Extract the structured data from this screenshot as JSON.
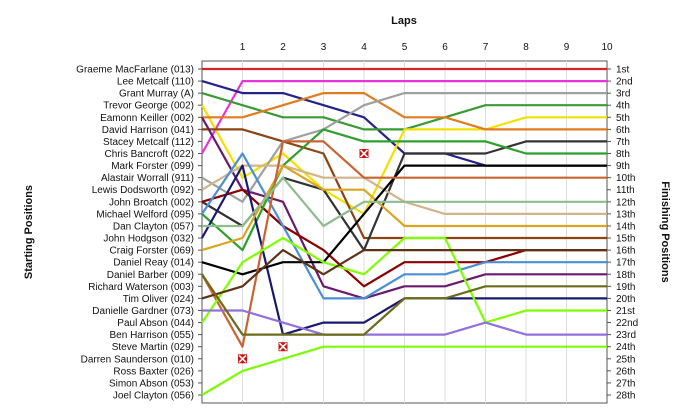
{
  "chart_data": {
    "type": "line",
    "title": "Laps",
    "ylabel_left": "Starting Positions",
    "ylabel_right": "Finishing Positions",
    "x": [
      0,
      1,
      2,
      3,
      4,
      5,
      6,
      7,
      8,
      9,
      10
    ],
    "xlim": [
      0,
      10
    ],
    "ylim": [
      1,
      28
    ],
    "grid": true,
    "start_labels": [
      "Graeme MacFarlane (013)",
      "Lee Metcalf (110)",
      "Grant Murray (A)",
      "Trevor George (002)",
      "Eamonn Keiller (002)",
      "David Harrison (041)",
      "Stacey Metcalf (112)",
      "Chris Bancroft (022)",
      "Mark Forster (099)",
      "Alastair Worrall (911)",
      "Lewis Dodsworth (092)",
      "John Broatch (002)",
      "Michael Welford (095)",
      "Dan Clayton (057)",
      "John Hodgson (032)",
      "Craig Forster (069)",
      "Daniel Reay (014)",
      "Daniel Barber (009)",
      "Richard Waterson (003)",
      "Tim Oliver (024)",
      "Danielle Gardner (073)",
      "Paul Abson (044)",
      "Ben Harrison (055)",
      "Steve Martin (029)",
      "Darren Saunderson (010)",
      "Ross Baxter (026)",
      "Simon Abson (053)",
      "Joel Clayton (056)"
    ],
    "finish_labels": [
      "1st",
      "2nd",
      "3rd",
      "4th",
      "5th",
      "6th",
      "7th",
      "8th",
      "9th",
      "10th",
      "11th",
      "12th",
      "13th",
      "14th",
      "15th",
      "16th",
      "17th",
      "18th",
      "19th",
      "20th",
      "21st",
      "22nd",
      "23rd",
      "24th",
      "25th",
      "26th",
      "27th",
      "28th"
    ],
    "retired_markers": [
      {
        "lap": 1,
        "position": 25
      },
      {
        "lap": 2,
        "position": 24
      },
      {
        "lap": 4,
        "position": 8
      }
    ],
    "series": [
      {
        "color": "#d62728",
        "positions": [
          1,
          1,
          1,
          1,
          1,
          1,
          1,
          1,
          1,
          1,
          1
        ]
      },
      {
        "color": "#e833d8",
        "positions": [
          8,
          2,
          2,
          2,
          2,
          2,
          2,
          2,
          2,
          2,
          2
        ]
      },
      {
        "color": "#22228a",
        "positions": [
          2,
          3,
          3,
          4,
          5,
          8,
          8,
          9,
          9,
          9,
          9
        ]
      },
      {
        "color": "#3a9a35",
        "positions": [
          3,
          4,
          5,
          5,
          6,
          6,
          5,
          4,
          4,
          4,
          4
        ]
      },
      {
        "color": "#f4e000",
        "positions": [
          4,
          10,
          8,
          11,
          13,
          6,
          6,
          6,
          5,
          5,
          5
        ]
      },
      {
        "color": "#e07b20",
        "positions": [
          5,
          5,
          4,
          3,
          3,
          5,
          5,
          6,
          6,
          6,
          6
        ]
      },
      {
        "color": "#8b4513",
        "positions": [
          6,
          6,
          7,
          8,
          15,
          15,
          15,
          15,
          15,
          15,
          15
        ]
      },
      {
        "color": "#6b1a6b",
        "positions": [
          5,
          11,
          12,
          19,
          20,
          19,
          19,
          18,
          18,
          18,
          18
        ]
      },
      {
        "color": "#333333",
        "positions": [
          12,
          14,
          10,
          11,
          16,
          8,
          8,
          8,
          7,
          7,
          7
        ]
      },
      {
        "color": "#a0a0a0",
        "positions": [
          10,
          12,
          7,
          6,
          4,
          3,
          3,
          3,
          3,
          3,
          3
        ]
      },
      {
        "color": "#8b0000",
        "positions": [
          12,
          11,
          14,
          16,
          19,
          17,
          17,
          17,
          16,
          16,
          16
        ]
      },
      {
        "color": "#d2b48c",
        "positions": [
          11,
          9,
          9,
          10,
          10,
          12,
          13,
          13,
          13,
          13,
          13
        ]
      },
      {
        "color": "#2ca02c",
        "positions": [
          13,
          16,
          9,
          6,
          7,
          7,
          7,
          7,
          8,
          8,
          8
        ]
      },
      {
        "color": "#4a8fd4",
        "positions": [
          13,
          8,
          14,
          20,
          20,
          18,
          18,
          17,
          17,
          17,
          17
        ]
      },
      {
        "color": "#191970",
        "positions": [
          15,
          9,
          23,
          22,
          22,
          20,
          20,
          20,
          20,
          20,
          20
        ]
      },
      {
        "color": "#daa520",
        "positions": [
          16,
          15,
          9,
          11,
          11,
          14,
          14,
          14,
          14,
          14,
          14
        ]
      },
      {
        "color": "#000000",
        "positions": [
          17,
          18,
          17,
          17,
          13,
          9,
          9,
          9,
          9,
          9,
          9
        ]
      },
      {
        "color": "#c86432",
        "positions": [
          18,
          24,
          7,
          7,
          10,
          10,
          10,
          10,
          10,
          10,
          10
        ]
      },
      {
        "color": "#7fff00",
        "positions": [
          22,
          17,
          15,
          17,
          18,
          15,
          15,
          22,
          21,
          21,
          21
        ]
      },
      {
        "color": "#5c3317",
        "positions": [
          20,
          19,
          16,
          18,
          16,
          16,
          16,
          16,
          16,
          16,
          16
        ]
      },
      {
        "color": "#9370db",
        "positions": [
          21,
          21,
          22,
          23,
          23,
          23,
          23,
          22,
          23,
          23,
          23
        ]
      },
      {
        "color": "#6b6b1a",
        "positions": [
          18,
          23,
          23,
          23,
          23,
          20,
          20,
          19,
          19,
          19,
          19
        ]
      },
      {
        "color": "#8fbc8f",
        "positions": [
          14,
          14,
          10,
          14,
          12,
          12,
          12,
          12,
          12,
          12,
          12
        ]
      },
      {
        "color": "#7cfc00",
        "positions": [
          28,
          26,
          25,
          24,
          24,
          24,
          24,
          24,
          24,
          24,
          24
        ]
      }
    ]
  }
}
